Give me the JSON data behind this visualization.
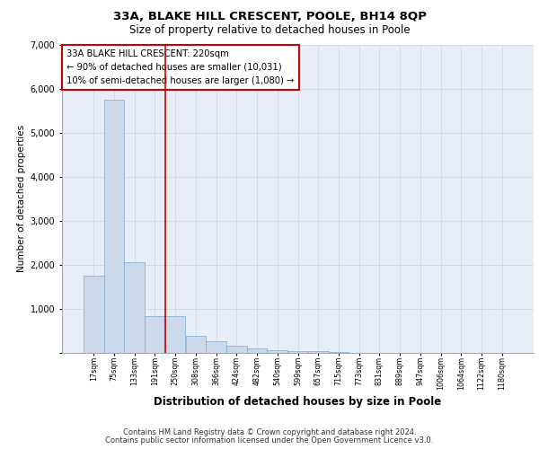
{
  "title_line1": "33A, BLAKE HILL CRESCENT, POOLE, BH14 8QP",
  "title_line2": "Size of property relative to detached houses in Poole",
  "xlabel": "Distribution of detached houses by size in Poole",
  "ylabel": "Number of detached properties",
  "footnote1": "Contains HM Land Registry data © Crown copyright and database right 2024.",
  "footnote2": "Contains public sector information licensed under the Open Government Licence v3.0.",
  "annotation_line1": "33A BLAKE HILL CRESCENT: 220sqm",
  "annotation_line2": "← 90% of detached houses are smaller (10,031)",
  "annotation_line3": "10% of semi-detached houses are larger (1,080) →",
  "bar_color": "#ccd9ea",
  "bar_edge_color": "#7aaad0",
  "vline_color": "#cc0000",
  "grid_color": "#d0dcea",
  "background_color": "#e8eef8",
  "categories": [
    "17sqm",
    "75sqm",
    "133sqm",
    "191sqm",
    "250sqm",
    "308sqm",
    "366sqm",
    "424sqm",
    "482sqm",
    "540sqm",
    "599sqm",
    "657sqm",
    "715sqm",
    "773sqm",
    "831sqm",
    "889sqm",
    "947sqm",
    "1006sqm",
    "1064sqm",
    "1122sqm",
    "1180sqm"
  ],
  "values": [
    1750,
    5750,
    2060,
    820,
    820,
    380,
    250,
    150,
    100,
    50,
    30,
    25,
    20,
    0,
    0,
    0,
    0,
    0,
    0,
    0,
    0
  ],
  "vline_x": 3.5,
  "ylim": [
    0,
    7000
  ],
  "yticks": [
    0,
    1000,
    2000,
    3000,
    4000,
    5000,
    6000,
    7000
  ]
}
